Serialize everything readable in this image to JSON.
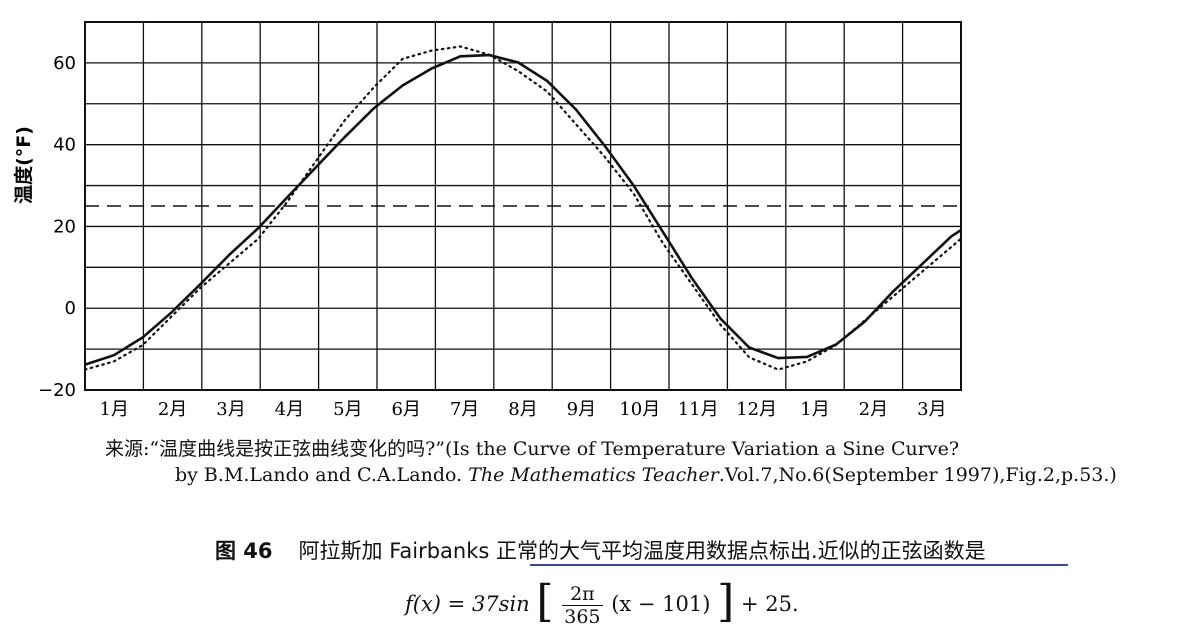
{
  "chart_data": {
    "type": "line",
    "title": "",
    "xlabel": "",
    "ylabel": "温度(°F)",
    "ylim": [
      -20,
      70
    ],
    "yticks": [
      60,
      40,
      20,
      0,
      -20
    ],
    "month_labels": [
      "1月",
      "2月",
      "3月",
      "4月",
      "5月",
      "6月",
      "7月",
      "8月",
      "9月",
      "10月",
      "11月",
      "12月",
      "1月",
      "2月",
      "3月"
    ],
    "xlim_days": [
      0,
      455
    ],
    "grid": true,
    "mean_line": 25,
    "series": [
      {
        "style": "solid",
        "x": [
          0,
          15,
          30,
          45,
          60,
          75,
          90,
          105,
          120,
          135,
          150,
          165,
          180,
          195,
          210,
          225,
          240,
          255,
          270,
          285,
          300,
          315,
          330,
          345,
          360,
          375,
          390,
          405,
          420,
          435,
          450,
          455
        ],
        "y": [
          -13.8,
          -11.5,
          -7.1,
          -1.0,
          5.9,
          13.1,
          19.6,
          27.1,
          34.5,
          41.9,
          48.9,
          54.5,
          58.6,
          61.6,
          61.9,
          60.1,
          55.6,
          48.6,
          39.7,
          30.0,
          18.8,
          7.5,
          -2.5,
          -9.6,
          -12.2,
          -11.9,
          -8.9,
          -3.3,
          4.2,
          10.9,
          17.6,
          19.1
        ]
      },
      {
        "style": "dotted",
        "x": [
          0,
          15,
          30,
          45,
          60,
          75,
          90,
          105,
          120,
          135,
          150,
          165,
          180,
          195,
          210,
          225,
          240,
          255,
          270,
          285,
          300,
          315,
          330,
          345,
          360,
          375,
          390,
          405,
          420,
          435,
          450,
          455
        ],
        "y": [
          -15,
          -13,
          -9,
          -2,
          5,
          11,
          17,
          26,
          36,
          46,
          54,
          61,
          63,
          64,
          62,
          58,
          53,
          45,
          37,
          28,
          16,
          6,
          -4,
          -12,
          -15,
          -13,
          -9,
          -3,
          3,
          9,
          15,
          17
        ]
      }
    ]
  },
  "source": {
    "line1": "来源:“温度曲线是按正弦曲线变化的吗?”(Is the Curve of Temperature Variation a Sine Curve?",
    "line2_pre": "by B.M.Lando and C.A.Lando.",
    "line2_journal": "The Mathematics Teacher",
    "line2_post": ".Vol.7,No.6(September 1997),Fig.2,p.53.)"
  },
  "caption": {
    "figure": "图 46",
    "text": "阿拉斯加 Fairbanks 正常的大气平均温度用数据点标出.近似的正弦函数是"
  },
  "formula": {
    "lhs": "f(x) = 37sin",
    "num": "2π",
    "den": "365",
    "inner": "(x − 101)",
    "tail": "+ 25."
  }
}
